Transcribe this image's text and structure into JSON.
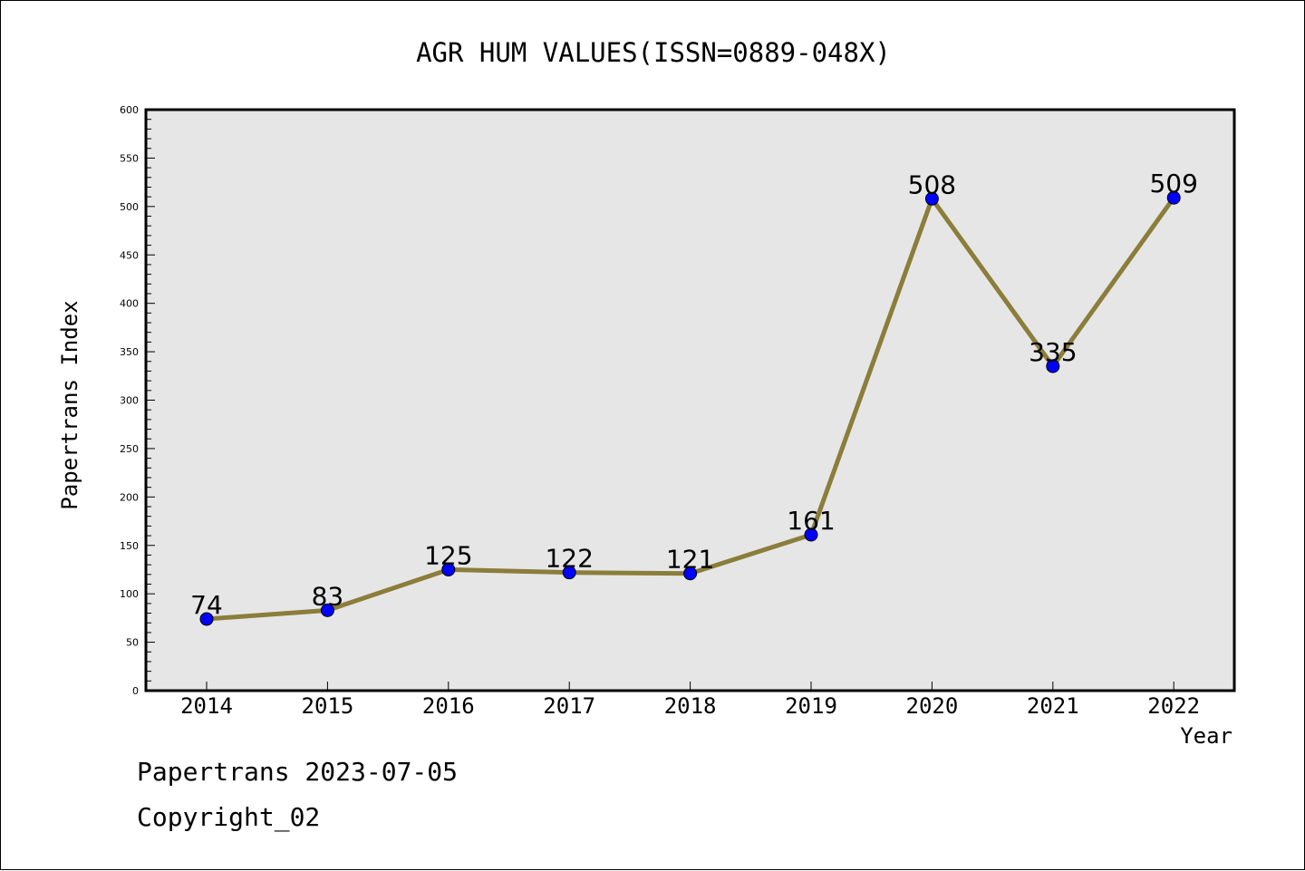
{
  "chart_data": {
    "type": "line",
    "title": "AGR HUM VALUES(ISSN=0889-048X)",
    "xlabel": "Year",
    "ylabel": "Papertrans Index",
    "x": [
      "2014",
      "2015",
      "2016",
      "2017",
      "2018",
      "2019",
      "2020",
      "2021",
      "2022"
    ],
    "values": [
      74,
      83,
      125,
      122,
      121,
      161,
      508,
      335,
      509
    ],
    "data_labels": [
      "74",
      "83",
      "125",
      "122",
      "121",
      "161",
      "508",
      "335",
      "509"
    ],
    "ylim": [
      0,
      600
    ],
    "yticks": [
      0,
      50,
      100,
      150,
      200,
      250,
      300,
      350,
      400,
      450,
      500,
      550,
      600
    ],
    "ytick_labels": [
      "0",
      "50",
      "100",
      "150",
      "200",
      "250",
      "300",
      "350",
      "400",
      "450",
      "500",
      "550",
      "600"
    ],
    "grid": false,
    "colors": {
      "line": "#8b7d3a",
      "marker": "#0000ff",
      "plot_background": "#e6e6e6"
    }
  },
  "footer": {
    "line1": "Papertrans 2023-07-05",
    "line2": "Copyright_02"
  }
}
